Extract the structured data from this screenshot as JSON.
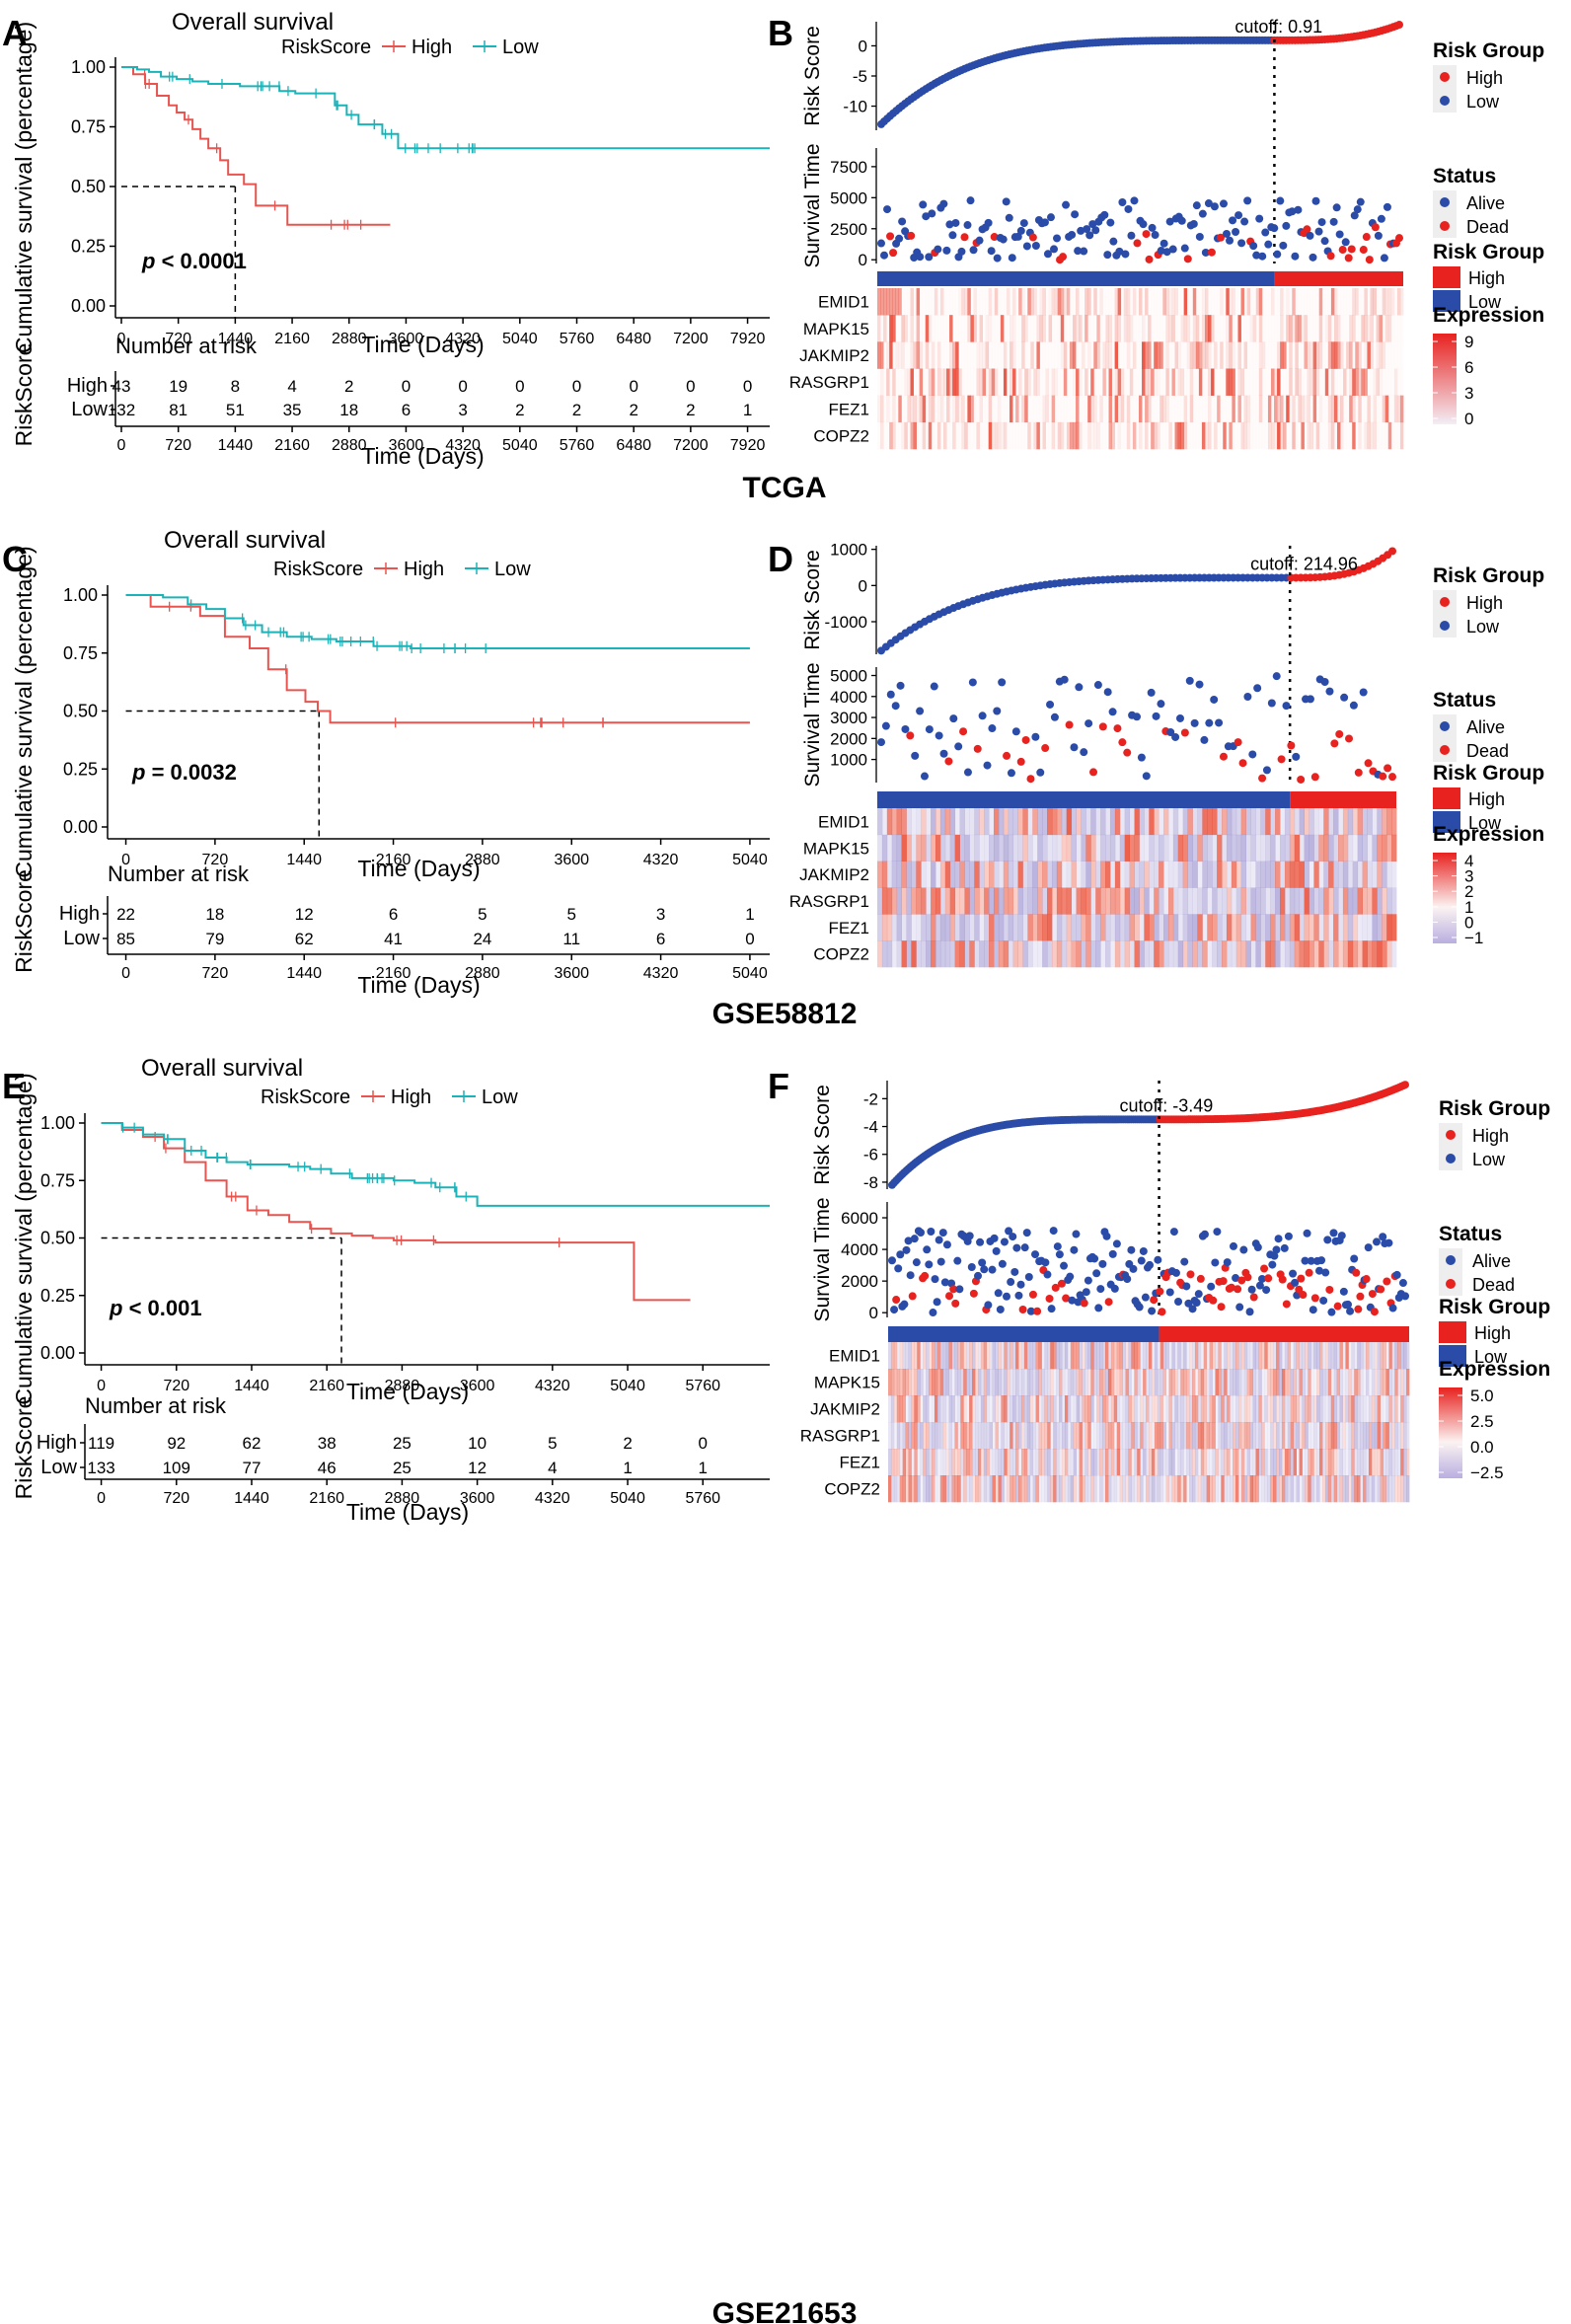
{
  "colors": {
    "high": "#E8544F",
    "low": "#1BB3B8",
    "high_dot": "#E8221F",
    "low_dot": "#2A4BA8",
    "hm_high": "#E8221F",
    "hm_low": "#2A4BA8"
  },
  "chart_data": [
    {
      "type": "line",
      "panel": "A",
      "title": "Overall survival",
      "legend_title": "RiskScore",
      "legend": [
        "High",
        "Low"
      ],
      "xlabel": "Time (Days)",
      "ylabel": "Cumulative survival (percentage)",
      "xticks": [
        "0",
        "720",
        "1440",
        "2160",
        "2880",
        "3600",
        "4320",
        "5040",
        "5760",
        "6480",
        "7200",
        "7920"
      ],
      "xlim": [
        0,
        8200
      ],
      "yticks": [
        "0.00",
        "0.25",
        "0.50",
        "0.75",
        "1.00"
      ],
      "ylim": [
        0,
        1
      ],
      "pvalue": "p < 0.0001",
      "pvalue_prefix": "p",
      "pvalue_suffix": " < 0.0001",
      "pvalue_red": true,
      "median_x": 1440,
      "series": [
        {
          "name": "High",
          "x": [
            0,
            150,
            300,
            450,
            600,
            700,
            800,
            900,
            1000,
            1100,
            1250,
            1350,
            1450,
            1550,
            1700,
            1900,
            2100,
            3400
          ],
          "y": [
            1.0,
            0.97,
            0.93,
            0.88,
            0.84,
            0.81,
            0.78,
            0.74,
            0.7,
            0.66,
            0.61,
            0.55,
            0.55,
            0.51,
            0.42,
            0.42,
            0.34,
            0.34
          ]
        },
        {
          "name": "Low",
          "x": [
            0,
            200,
            350,
            500,
            700,
            900,
            1100,
            1300,
            1500,
            1700,
            2000,
            2200,
            2400,
            2600,
            2700,
            2850,
            3000,
            3100,
            3200,
            3300,
            3500,
            8200
          ],
          "y": [
            1.0,
            0.99,
            0.98,
            0.96,
            0.95,
            0.94,
            0.93,
            0.93,
            0.92,
            0.92,
            0.9,
            0.89,
            0.89,
            0.89,
            0.84,
            0.8,
            0.76,
            0.76,
            0.76,
            0.72,
            0.66,
            0.66
          ]
        }
      ],
      "risk_table": {
        "title": "Number at risk",
        "ylabel": "RiskScore",
        "xlabel": "Time (Days)",
        "rows": [
          {
            "name": "High",
            "values": [
              "43",
              "19",
              "8",
              "4",
              "2",
              "0",
              "0",
              "0",
              "0",
              "0",
              "0",
              "0"
            ]
          },
          {
            "name": "Low",
            "values": [
              "132",
              "81",
              "51",
              "35",
              "18",
              "6",
              "3",
              "2",
              "2",
              "2",
              "2",
              "1"
            ]
          }
        ]
      }
    },
    {
      "type": "line",
      "panel": "C",
      "title": "Overall survival",
      "legend_title": "RiskScore",
      "legend": [
        "High",
        "Low"
      ],
      "xlabel": "Time (Days)",
      "ylabel": "Cumulative survival (percentage)",
      "xticks": [
        "0",
        "720",
        "1440",
        "2160",
        "2880",
        "3600",
        "4320",
        "5040"
      ],
      "xlim": [
        -100,
        5200
      ],
      "yticks": [
        "0.00",
        "0.25",
        "0.50",
        "0.75",
        "1.00"
      ],
      "ylim": [
        0,
        1
      ],
      "pvalue": "p = 0.0032",
      "pvalue_prefix": "p",
      "pvalue_suffix": " = 0.0032",
      "pvalue_red": false,
      "median_x": 1560,
      "series": [
        {
          "name": "High",
          "x": [
            0,
            200,
            600,
            800,
            1000,
            1150,
            1300,
            1450,
            1550,
            1650,
            5040
          ],
          "y": [
            1.0,
            0.95,
            0.91,
            0.82,
            0.77,
            0.68,
            0.59,
            0.54,
            0.5,
            0.45,
            0.45
          ]
        },
        {
          "name": "Low",
          "x": [
            0,
            300,
            500,
            650,
            800,
            950,
            1100,
            1300,
            1500,
            1700,
            2000,
            2300,
            2600,
            5040
          ],
          "y": [
            1.0,
            0.99,
            0.96,
            0.94,
            0.9,
            0.87,
            0.84,
            0.82,
            0.81,
            0.8,
            0.78,
            0.77,
            0.77,
            0.77
          ]
        }
      ],
      "risk_table": {
        "title": "Number at risk",
        "ylabel": "RiskScore",
        "xlabel": "Time (Days)",
        "rows": [
          {
            "name": "High",
            "values": [
              "22",
              "18",
              "12",
              "6",
              "5",
              "5",
              "3",
              "1"
            ]
          },
          {
            "name": "Low",
            "values": [
              "85",
              "79",
              "62",
              "41",
              "24",
              "11",
              "6",
              "0"
            ]
          }
        ]
      }
    },
    {
      "type": "line",
      "panel": "E",
      "title": "Overall survival",
      "legend_title": "RiskScore",
      "legend": [
        "High",
        "Low"
      ],
      "xlabel": "Time (Days)",
      "ylabel": "Cumulative survival (percentage)",
      "xticks": [
        "0",
        "720",
        "1440",
        "2160",
        "2880",
        "3600",
        "4320",
        "5040",
        "5760"
      ],
      "xlim": [
        -100,
        6400
      ],
      "yticks": [
        "0.00",
        "0.25",
        "0.50",
        "0.75",
        "1.00"
      ],
      "ylim": [
        0,
        1
      ],
      "pvalue": "p < 0.001",
      "pvalue_prefix": "p",
      "pvalue_suffix": " < 0.001",
      "pvalue_red": false,
      "median_x": 2300,
      "series": [
        {
          "name": "High",
          "x": [
            0,
            200,
            400,
            600,
            800,
            1000,
            1200,
            1400,
            1600,
            1800,
            2000,
            2200,
            2400,
            2600,
            2800,
            3200,
            4000,
            4600,
            5000,
            5100,
            5640
          ],
          "y": [
            1.0,
            0.97,
            0.94,
            0.89,
            0.83,
            0.75,
            0.68,
            0.62,
            0.6,
            0.57,
            0.54,
            0.52,
            0.51,
            0.5,
            0.49,
            0.48,
            0.48,
            0.48,
            0.48,
            0.23,
            0.23
          ]
        },
        {
          "name": "Low",
          "x": [
            0,
            200,
            400,
            600,
            800,
            1000,
            1200,
            1400,
            1600,
            1800,
            2000,
            2200,
            2400,
            2600,
            2800,
            3000,
            3200,
            3400,
            3600,
            3800,
            6400
          ],
          "y": [
            1.0,
            0.98,
            0.95,
            0.93,
            0.88,
            0.85,
            0.83,
            0.82,
            0.82,
            0.81,
            0.8,
            0.78,
            0.76,
            0.76,
            0.75,
            0.74,
            0.72,
            0.68,
            0.64,
            0.64,
            0.64
          ]
        }
      ],
      "risk_table": {
        "title": "Number at risk",
        "ylabel": "RiskScore",
        "xlabel": "Time (Days)",
        "rows": [
          {
            "name": "High",
            "values": [
              "119",
              "92",
              "62",
              "38",
              "25",
              "10",
              "5",
              "2",
              "0"
            ]
          },
          {
            "name": "Low",
            "values": [
              "133",
              "109",
              "77",
              "46",
              "25",
              "12",
              "4",
              "1",
              "1"
            ]
          }
        ]
      }
    },
    {
      "type": "scatter",
      "panel": "B",
      "caption": "TCGA",
      "risk_ylabel": "Risk Score",
      "risk_yticks": [
        "0",
        "-5",
        "-10"
      ],
      "risk_ylim": [
        -14,
        4
      ],
      "risk_range": [
        -13,
        3.5
      ],
      "cutoff_label": "cutoff: 0.91",
      "cutoff_frac": 0.755,
      "n_points": 175,
      "surv_ylabel": "Survival Time",
      "surv_yticks": [
        "0",
        "2500",
        "5000",
        "7500"
      ],
      "surv_ylim": [
        -300,
        9000
      ],
      "surv_max": 4800,
      "legend_risk_title": "Risk Group",
      "legend_status_title": "Status",
      "legend_high": "High",
      "legend_low": "Low",
      "legend_alive": "Alive",
      "legend_dead": "Dead",
      "genes": [
        "EMID1",
        "MAPK15",
        "JAKMIP2",
        "RASGRP1",
        "FEZ1",
        "COPZ2"
      ],
      "expression_title": "Expression",
      "expression_ticks": [
        "9",
        "6",
        "3",
        "0"
      ],
      "heatmap_style": "sparse",
      "seed": 11
    },
    {
      "type": "scatter",
      "panel": "D",
      "caption": "GSE58812",
      "risk_ylabel": "Risk Score",
      "risk_yticks": [
        "1000",
        "0",
        "-1000"
      ],
      "risk_ylim": [
        -1900,
        1100
      ],
      "risk_range": [
        -1800,
        950
      ],
      "cutoff_label": "cutoff: 214.96",
      "cutoff_frac": 0.795,
      "n_points": 107,
      "surv_ylabel": "Survival Time",
      "surv_yticks": [
        "1000",
        "2000",
        "3000",
        "4000",
        "5000"
      ],
      "surv_ylim": [
        -100,
        5400
      ],
      "surv_max": 5000,
      "legend_risk_title": "Risk Group",
      "legend_status_title": "Status",
      "legend_high": "High",
      "legend_low": "Low",
      "legend_alive": "Alive",
      "legend_dead": "Dead",
      "genes": [
        "EMID1",
        "MAPK15",
        "JAKMIP2",
        "RASGRP1",
        "FEZ1",
        "COPZ2"
      ],
      "expression_title": "Expression",
      "expression_ticks": [
        "4",
        "3",
        "2",
        "1",
        "0",
        "−1"
      ],
      "heatmap_style": "dense",
      "seed": 23
    },
    {
      "type": "scatter",
      "panel": "F",
      "caption": "GSE21653",
      "risk_ylabel": "Risk Score",
      "risk_yticks": [
        "-2",
        "-4",
        "-6",
        "-8"
      ],
      "risk_ylim": [
        -8.5,
        -0.7
      ],
      "risk_range": [
        -8.2,
        -1.0
      ],
      "cutoff_label": "cutoff: -3.49",
      "cutoff_frac": 0.52,
      "n_points": 252,
      "surv_ylabel": "Survival Time",
      "surv_yticks": [
        "0",
        "2000",
        "4000",
        "6000"
      ],
      "surv_ylim": [
        -300,
        7000
      ],
      "surv_max": 5200,
      "legend_risk_title": "Risk Group",
      "legend_status_title": "Status",
      "legend_high": "High",
      "legend_low": "Low",
      "legend_alive": "Alive",
      "legend_dead": "Dead",
      "genes": [
        "EMID1",
        "MAPK15",
        "JAKMIP2",
        "RASGRP1",
        "FEZ1",
        "COPZ2"
      ],
      "expression_title": "Expression",
      "expression_ticks": [
        "5.0",
        "2.5",
        "0.0",
        "−2.5"
      ],
      "heatmap_style": "medium",
      "seed": 37
    }
  ]
}
